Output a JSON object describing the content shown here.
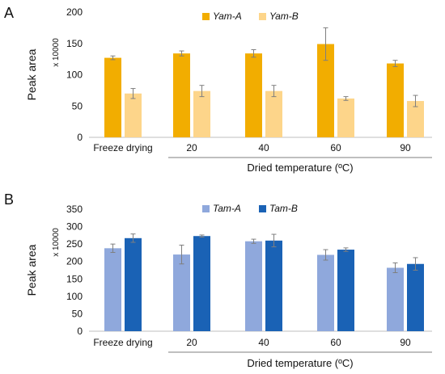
{
  "chart_data": [
    {
      "type": "bar",
      "panel_label": "A",
      "categories": [
        "Freeze drying",
        "20",
        "40",
        "60",
        "90"
      ],
      "group_title": "Dried temperature (ºC)",
      "ylabel": "Peak area",
      "y_multiplier": "x 10000",
      "ylim": [
        0,
        200
      ],
      "yticks": [
        "0",
        "50",
        "100",
        "150",
        "200"
      ],
      "series": [
        {
          "name": "Yam-A",
          "color": "#f2ad00",
          "values": [
            127,
            134,
            134,
            149,
            118
          ],
          "errors": [
            3,
            4,
            6,
            26,
            5
          ]
        },
        {
          "name": "Yam-B",
          "color": "#fdd58a",
          "values": [
            70,
            74,
            74,
            62,
            58
          ],
          "errors": [
            8,
            9,
            9,
            3,
            9
          ]
        }
      ],
      "legend_position": "top-center",
      "grid": false
    },
    {
      "type": "bar",
      "panel_label": "B",
      "categories": [
        "Freeze drying",
        "20",
        "40",
        "60",
        "90"
      ],
      "group_title": "Dried temperature (ºC)",
      "ylabel": "Peak area",
      "y_multiplier": "x 10000",
      "ylim": [
        0,
        350
      ],
      "yticks": [
        "0",
        "50",
        "100",
        "150",
        "200",
        "250",
        "300",
        "350"
      ],
      "series": [
        {
          "name": "Tam-A",
          "color": "#8fa8dc",
          "values": [
            238,
            220,
            258,
            219,
            182
          ],
          "errors": [
            12,
            27,
            6,
            15,
            14
          ]
        },
        {
          "name": "Tam-B",
          "color": "#1a62b5",
          "values": [
            267,
            273,
            260,
            234,
            193
          ],
          "errors": [
            12,
            3,
            18,
            5,
            18
          ]
        }
      ],
      "legend_position": "top-center",
      "grid": false
    }
  ]
}
